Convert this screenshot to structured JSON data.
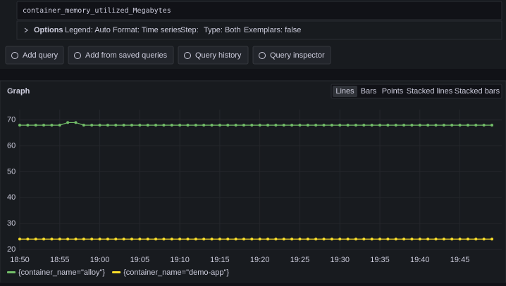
{
  "query": {
    "expression": "container_memory_utilized_Megabytes",
    "options_label": "Options",
    "options": [
      "Legend: Auto",
      "Format: Time series",
      "Step:",
      "Type: Both",
      "Exemplars: false"
    ]
  },
  "buttons": [
    "Add query",
    "Add from saved queries",
    "Query history",
    "Query inspector"
  ],
  "panel": {
    "title": "Graph",
    "view_modes": [
      "Lines",
      "Bars",
      "Points",
      "Stacked lines",
      "Stacked bars"
    ],
    "selected_mode": 0
  },
  "chart_data": {
    "type": "line",
    "x": [
      "18:50",
      "18:51",
      "18:52",
      "18:53",
      "18:54",
      "18:55",
      "18:56",
      "18:57",
      "18:58",
      "18:59",
      "19:00",
      "19:01",
      "19:02",
      "19:03",
      "19:04",
      "19:05",
      "19:06",
      "19:07",
      "19:08",
      "19:09",
      "19:10",
      "19:11",
      "19:12",
      "19:13",
      "19:14",
      "19:15",
      "19:16",
      "19:17",
      "19:18",
      "19:19",
      "19:20",
      "19:21",
      "19:22",
      "19:23",
      "19:24",
      "19:25",
      "19:26",
      "19:27",
      "19:28",
      "19:29",
      "19:30",
      "19:31",
      "19:32",
      "19:33",
      "19:34",
      "19:35",
      "19:36",
      "19:37",
      "19:38",
      "19:39",
      "19:40",
      "19:41",
      "19:42",
      "19:43",
      "19:44",
      "19:45",
      "19:46",
      "19:47",
      "19:48",
      "19:49"
    ],
    "series": [
      {
        "name": "{container_name=\"alloy\"}",
        "color": "#73bf69",
        "values": [
          68,
          68,
          68,
          68,
          68,
          68,
          69,
          69,
          68,
          68,
          68,
          68,
          68,
          68,
          68,
          68,
          68,
          68,
          68,
          68,
          68,
          68,
          68,
          68,
          68,
          68,
          68,
          68,
          68,
          68,
          68,
          68,
          68,
          68,
          68,
          68,
          68,
          68,
          68,
          68,
          68,
          68,
          68,
          68,
          68,
          68,
          68,
          68,
          68,
          68,
          68,
          68,
          68,
          68,
          68,
          68,
          68,
          68,
          68,
          68
        ]
      },
      {
        "name": "{container_name=\"demo-app\"}",
        "color": "#fade2a",
        "values": [
          24,
          24,
          24,
          24,
          24,
          24,
          24,
          24,
          24,
          24,
          24,
          24,
          24,
          24,
          24,
          24,
          24,
          24,
          24,
          24,
          24,
          24,
          24,
          24,
          24,
          24,
          24,
          24,
          24,
          24,
          24,
          24,
          24,
          24,
          24,
          24,
          24,
          24,
          24,
          24,
          24,
          24,
          24,
          24,
          24,
          24,
          24,
          24,
          24,
          24,
          24,
          24,
          24,
          24,
          24,
          24,
          24,
          24,
          24,
          24
        ]
      }
    ],
    "xlim": [
      "18:50",
      "19:49"
    ],
    "xticks": [
      "18:50",
      "18:55",
      "19:00",
      "19:05",
      "19:10",
      "19:15",
      "19:20",
      "19:25",
      "19:30",
      "19:35",
      "19:40",
      "19:45"
    ],
    "ylim": [
      20,
      74
    ],
    "yticks": [
      20,
      30,
      40,
      50,
      60,
      70
    ],
    "grid": true,
    "legend": "bottom"
  }
}
